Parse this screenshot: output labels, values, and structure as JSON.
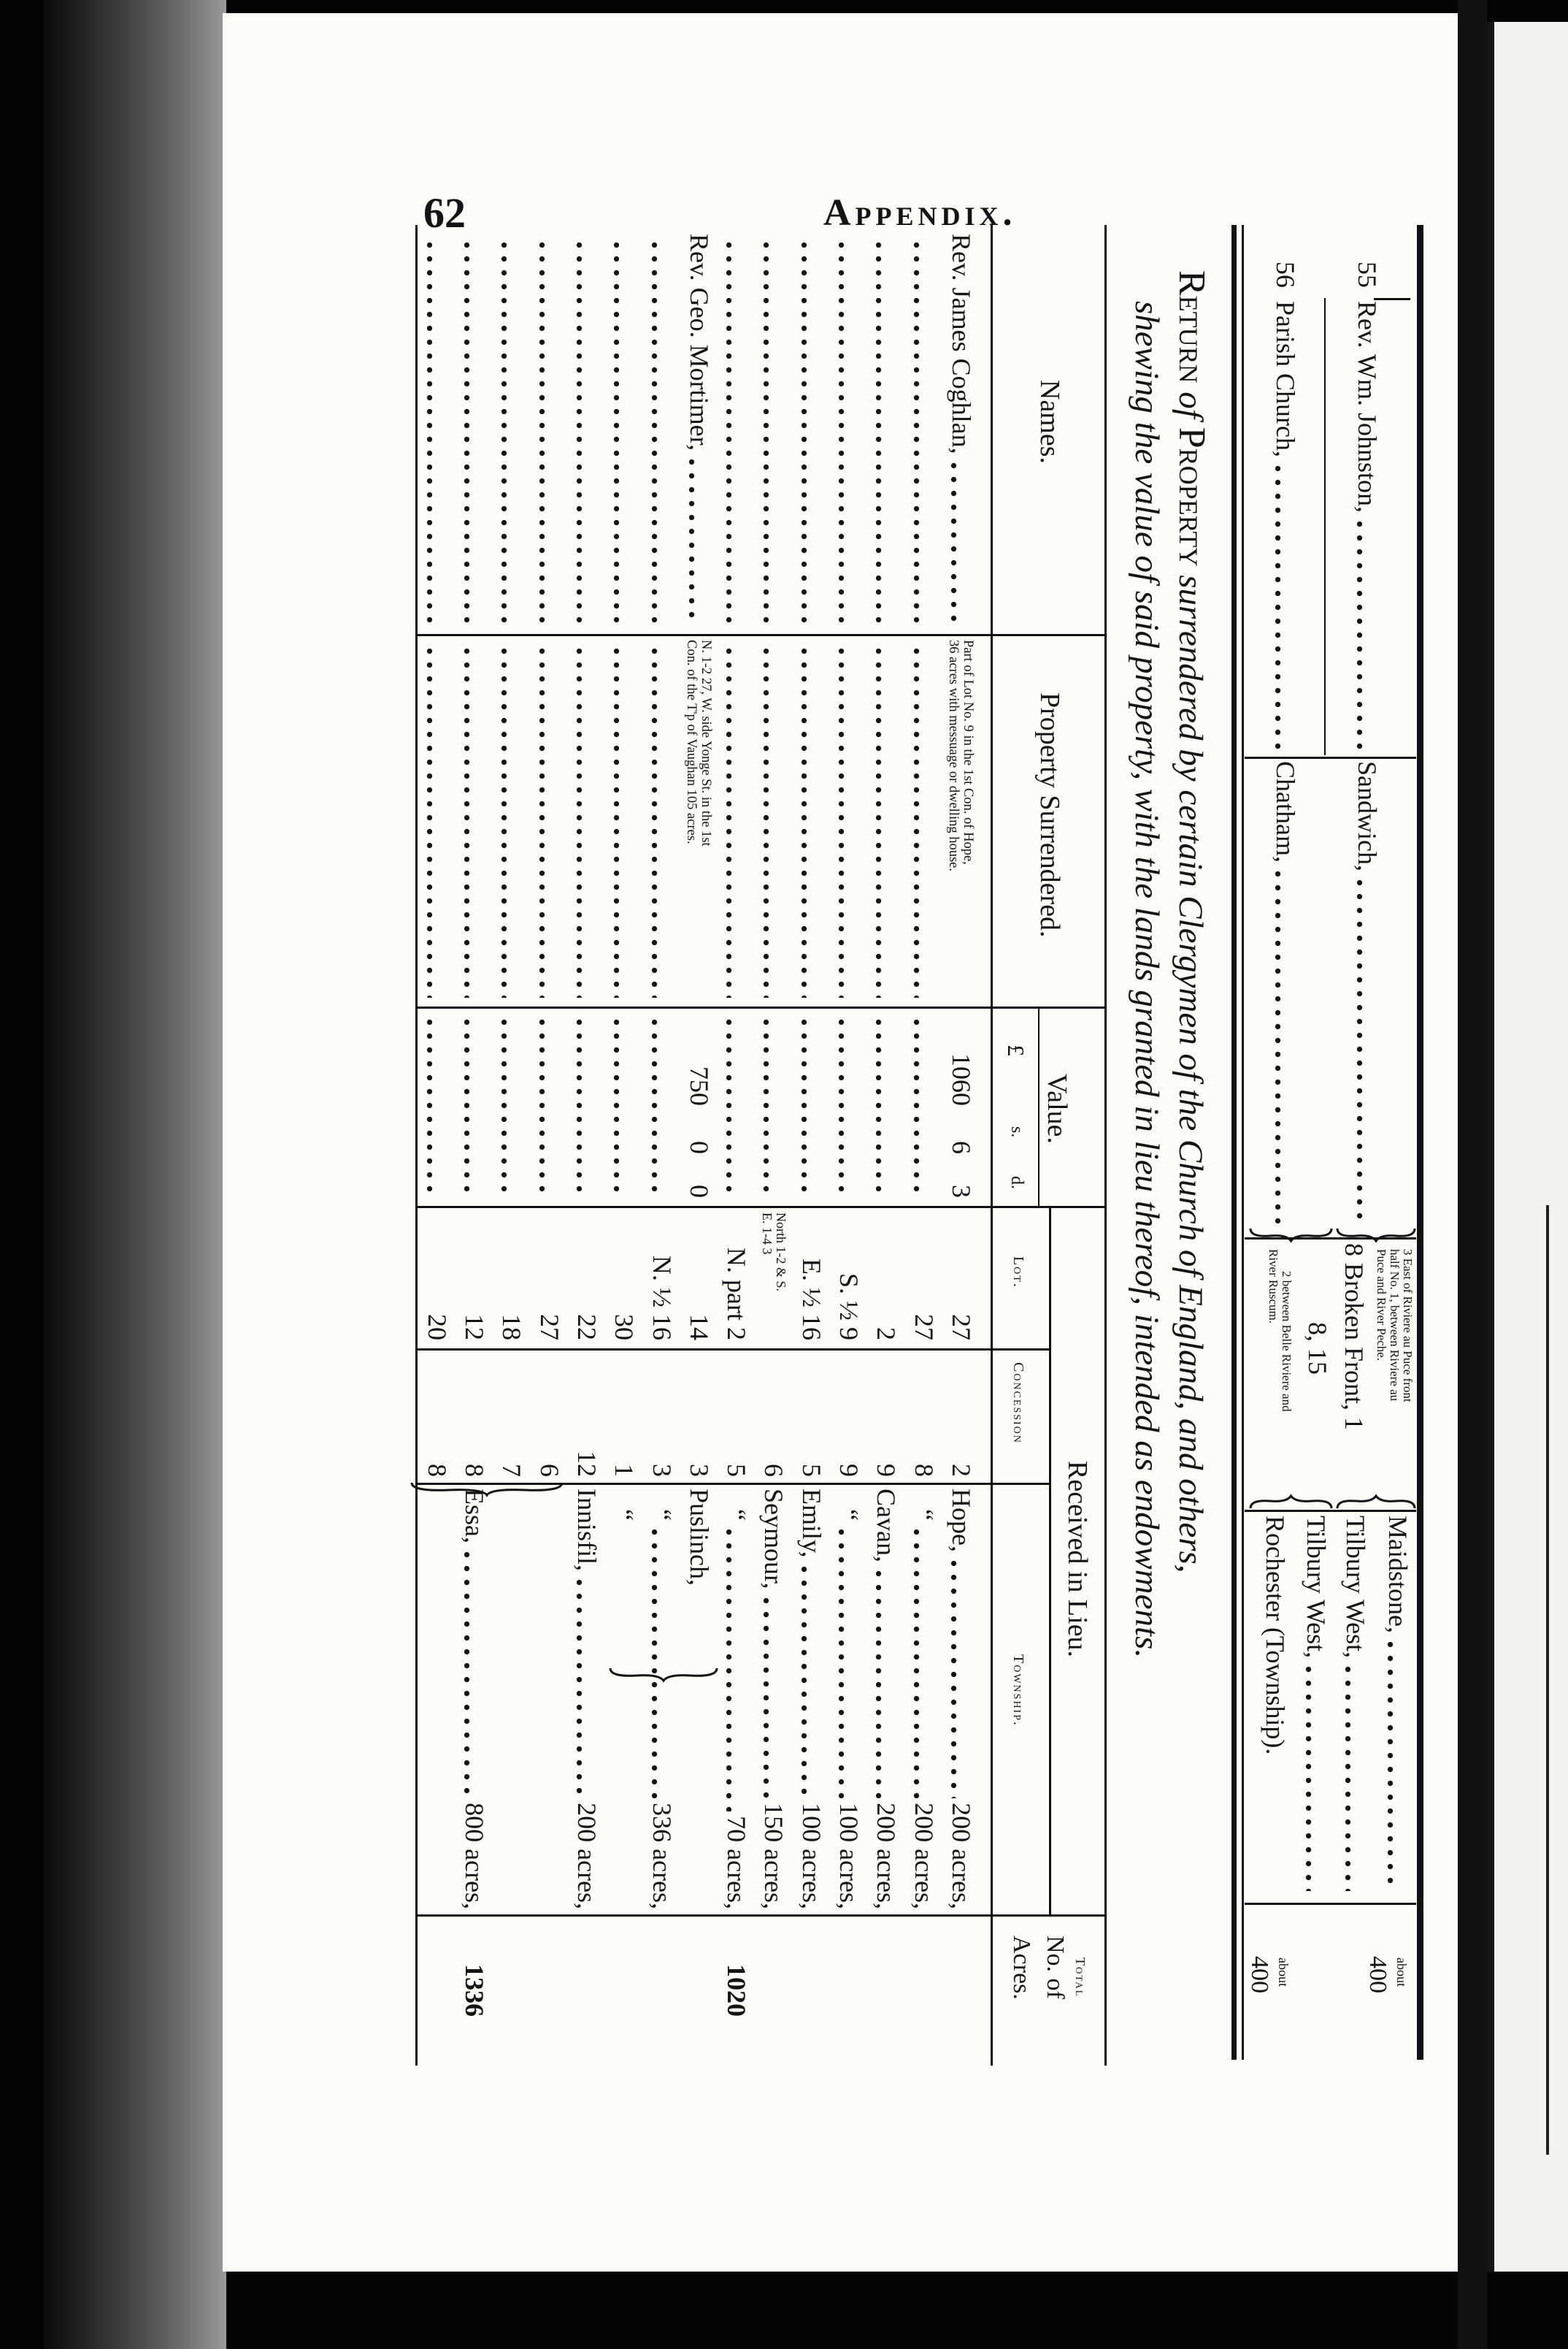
{
  "page_header": {
    "page_number": "62",
    "running_title": "Appendix."
  },
  "upper_table": {
    "entries": [
      {
        "number": "55",
        "name": "Rev. Wm. Johnston,",
        "place": "Sandwich,",
        "lot_lines": [
          "3 East of Riviere au Puce front",
          "half No. 1, between Riviere au",
          "Puce and River Peche.",
          "8 Broken Front, 1"
        ],
        "townships": [
          "Maidstone,",
          "Tilbury West,"
        ],
        "total_note": "about",
        "total": "400"
      },
      {
        "number": "56",
        "name": "Parish Church,",
        "place": "Chatham,",
        "lot_lines": [
          "8, 15",
          "2 between Belle Riviere and",
          "River Ruscum."
        ],
        "townships": [
          "Tilbury West,",
          "Rochester (Township)."
        ],
        "total_note": "about",
        "total": "400"
      }
    ]
  },
  "return_title": {
    "line1_smallcaps_a": "Return",
    "line1_of": " of ",
    "line1_smallcaps_b": "Property",
    "line1_rest": " surrendered by certain Clergymen of the Church of England, and others,",
    "line2": "shewing the value of said property, with the lands granted in lieu thereof, intended as endowments."
  },
  "headers": {
    "names": "Names.",
    "property": "Property Surrendered.",
    "value": "Value.",
    "pounds": "£",
    "shillings": "s.",
    "pence": "d.",
    "received": "Received in Lieu.",
    "lot": "Lot.",
    "concession": "Concession",
    "township": "Township.",
    "total_top": "Total",
    "total_mid": "No. of",
    "total_bottom": "Acres."
  },
  "rows": [
    {
      "name": "Rev. James Coghlan,",
      "property": [
        "Part of Lot No. 9 in the 1st Con. of Hope,",
        "36 acres with messuage or dwelling house."
      ],
      "value": [
        "1060",
        "6",
        "3"
      ],
      "lot": "27",
      "concession": "2",
      "township": "Hope,",
      "acres": "200 acres,"
    },
    {
      "lot": "27",
      "concession": "8",
      "township": "“",
      "acres": "200 acres,"
    },
    {
      "lot": "2",
      "concession": "9",
      "township": "Cavan,",
      "acres": "200 acres,"
    },
    {
      "lot": "S. ½ 9",
      "concession": "9",
      "township": "“",
      "acres": "100 acres,"
    },
    {
      "lot": "E. ½ 16",
      "concession": "5",
      "township": "Emily,",
      "acres": "100 acres,"
    },
    {
      "lot": "North 1-2 & S. E. 1-4 3",
      "concession": "6",
      "township": "Seymour,",
      "acres": "150 acres,"
    },
    {
      "lot": "N. part 2",
      "concession": "5",
      "township": "“",
      "acres": "70 acres,",
      "total": "1020"
    },
    {
      "name": "Rev. Geo. Mortimer,",
      "property": [
        "N. 1-2 27, W. side Yonge St. in the 1st",
        "Con. of the T'p of Vaughan 105 acres."
      ],
      "value": [
        "750",
        "0",
        "0"
      ],
      "lot": "14",
      "concession": "3",
      "township": "Puslinch,"
    },
    {
      "lot": "N. ½ 16",
      "concession": "3",
      "township": "“",
      "acres": "336 acres,"
    },
    {
      "lot": "30",
      "concession": "1",
      "township": "“"
    },
    {
      "lot": "22",
      "concession": "12",
      "township": "Innisfil,",
      "acres": "200 acres,"
    },
    {
      "lot": "27",
      "concession": "6"
    },
    {
      "lot": "18",
      "concession": "7"
    },
    {
      "lot": "12",
      "concession": "8",
      "township": "Essa,",
      "acres": "800 acres,",
      "total": "1336"
    },
    {
      "lot": "20",
      "concession": "8"
    }
  ]
}
